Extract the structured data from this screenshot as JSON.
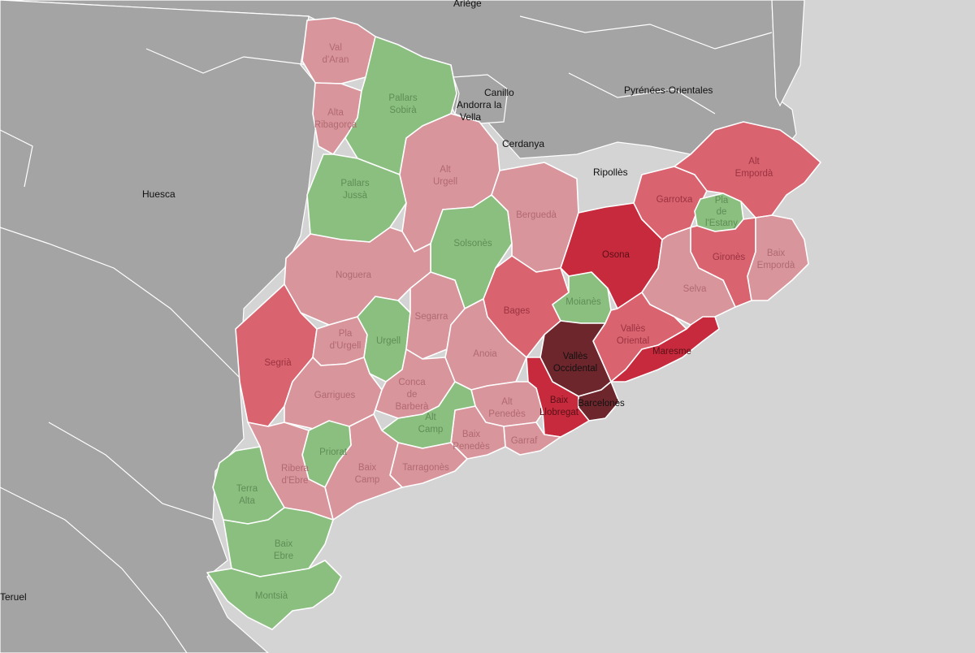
{
  "palette": {
    "sea": "#d4d4d4",
    "land": "#a4a4a4",
    "green": "#8bbf80",
    "light_red": "#d9959c",
    "mid_red": "#d9636f",
    "red": "#c72a3c",
    "dark": "#6e262d"
  },
  "outer_labels": {
    "ariege": "Ariège",
    "canillo": "Canillo",
    "andorra_la": "Andorra la",
    "vella": "Vella",
    "pyrenees_orientales": "Pyrénées-Orientales",
    "cerdanya": "Cerdanya",
    "ripolles": "Ripollès",
    "huesca": "Huesca",
    "teruel": "Teruel"
  },
  "regions": [
    {
      "id": "val-daran",
      "label": [
        "Val",
        "d'Aran"
      ],
      "class": "light_red"
    },
    {
      "id": "alta-ribagorca",
      "label": [
        "Alta",
        "Ribagorça"
      ],
      "class": "light_red"
    },
    {
      "id": "pallars-sobira",
      "label": [
        "Pallars",
        "Sobirà"
      ],
      "class": "green"
    },
    {
      "id": "pallars-jussa",
      "label": [
        "Pallars",
        "Jussà"
      ],
      "class": "green"
    },
    {
      "id": "alt-urgell",
      "label": [
        "Alt",
        "Urgell"
      ],
      "class": "light_red"
    },
    {
      "id": "solsones",
      "label": [
        "Solsonès"
      ],
      "class": "green"
    },
    {
      "id": "bergueda",
      "label": [
        "Berguedà"
      ],
      "class": "light_red"
    },
    {
      "id": "noguera",
      "label": [
        "Noguera"
      ],
      "class": "light_red"
    },
    {
      "id": "segria",
      "label": [
        "Segrià"
      ],
      "class": "mid_red"
    },
    {
      "id": "pla-durgell",
      "label": [
        "Pla",
        "d'Urgell"
      ],
      "class": "light_red"
    },
    {
      "id": "urgell",
      "label": [
        "Urgell"
      ],
      "class": "green"
    },
    {
      "id": "segarra",
      "label": [
        "Segarra"
      ],
      "class": "light_red"
    },
    {
      "id": "garrigues",
      "label": [
        "Garrigues"
      ],
      "class": "light_red"
    },
    {
      "id": "conca-de-barbera",
      "label": [
        "Conca",
        "de",
        "Barberà"
      ],
      "class": "light_red"
    },
    {
      "id": "anoia",
      "label": [
        "Anoia"
      ],
      "class": "light_red"
    },
    {
      "id": "bages",
      "label": [
        "Bages"
      ],
      "class": "mid_red"
    },
    {
      "id": "moianes",
      "label": [
        "Moianès"
      ],
      "class": "green"
    },
    {
      "id": "osona",
      "label": [
        "Osona"
      ],
      "class": "red"
    },
    {
      "id": "garrotxa",
      "label": [
        "Garrotxa"
      ],
      "class": "mid_red"
    },
    {
      "id": "pla-de-lestany",
      "label": [
        "Pla",
        "de",
        "l'Estany"
      ],
      "class": "green"
    },
    {
      "id": "alt-emporda",
      "label": [
        "Alt",
        "Empordà"
      ],
      "class": "mid_red"
    },
    {
      "id": "girones",
      "label": [
        "Gironès"
      ],
      "class": "mid_red"
    },
    {
      "id": "baix-emporda",
      "label": [
        "Baix",
        "Empordà"
      ],
      "class": "light_red"
    },
    {
      "id": "selva",
      "label": [
        "Selva"
      ],
      "class": "light_red"
    },
    {
      "id": "valles-oriental",
      "label": [
        "Vallès",
        "Oriental"
      ],
      "class": "mid_red"
    },
    {
      "id": "maresme",
      "label": [
        "Maresme"
      ],
      "class": "red"
    },
    {
      "id": "valles-occidental",
      "label": [
        "Vallès",
        "Occidental"
      ],
      "class": "dark"
    },
    {
      "id": "barcelones",
      "label": [
        "Barcelonès"
      ],
      "class": "dark"
    },
    {
      "id": "baix-llobregat",
      "label": [
        "Baix",
        "Llobregat"
      ],
      "class": "red"
    },
    {
      "id": "alt-penedes",
      "label": [
        "Alt",
        "Penedès"
      ],
      "class": "light_red"
    },
    {
      "id": "garraf",
      "label": [
        "Garraf"
      ],
      "class": "light_red"
    },
    {
      "id": "baix-penedes",
      "label": [
        "Baix",
        "Penedès"
      ],
      "class": "light_red"
    },
    {
      "id": "alt-camp",
      "label": [
        "Alt",
        "Camp"
      ],
      "class": "green"
    },
    {
      "id": "tarragones",
      "label": [
        "Tarragonès"
      ],
      "class": "light_red"
    },
    {
      "id": "baix-camp",
      "label": [
        "Baix",
        "Camp"
      ],
      "class": "light_red"
    },
    {
      "id": "priorat",
      "label": [
        "Priorat"
      ],
      "class": "green"
    },
    {
      "id": "ribera-debre",
      "label": [
        "Ribera",
        "d'Ebre"
      ],
      "class": "light_red"
    },
    {
      "id": "terra-alta",
      "label": [
        "Terra",
        "Alta"
      ],
      "class": "green"
    },
    {
      "id": "baix-ebre",
      "label": [
        "Baix",
        "Ebre"
      ],
      "class": "green"
    },
    {
      "id": "montsia",
      "label": [
        "Montsià"
      ],
      "class": "green"
    }
  ]
}
